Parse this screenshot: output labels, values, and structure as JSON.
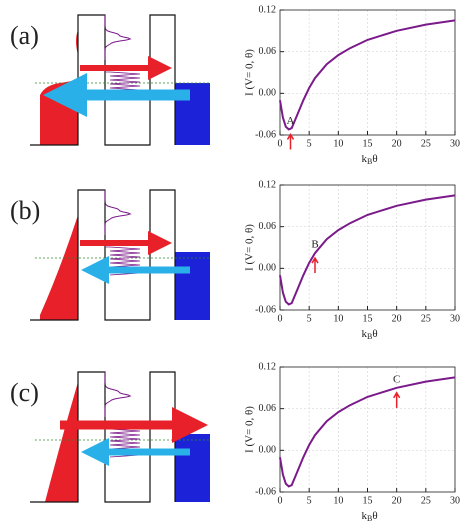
{
  "panel_labels": [
    "(a)",
    "(b)",
    "(c)"
  ],
  "chart_data": [
    {
      "type": "line",
      "y_label": "I (V= 0, θ)",
      "x_label": [
        "k",
        "B",
        "θ"
      ],
      "x": [
        0,
        0.5,
        1,
        1.5,
        2,
        3,
        4,
        5,
        6,
        8,
        10,
        12,
        15,
        20,
        25,
        30
      ],
      "series": [
        {
          "color": "#7b1a8a",
          "values": [
            -0.01,
            -0.035,
            -0.048,
            -0.052,
            -0.05,
            -0.03,
            -0.01,
            0.008,
            0.022,
            0.042,
            0.055,
            0.065,
            0.077,
            0.09,
            0.099,
            0.105
          ]
        }
      ],
      "xlim": [
        0,
        30
      ],
      "ylim": [
        -0.06,
        0.12
      ],
      "xticks": [
        0,
        5,
        10,
        15,
        20,
        25,
        30
      ],
      "yticks": [
        {
          "value": -0.06,
          "label": "-0.06"
        },
        {
          "value": 0,
          "label": "0.00"
        },
        {
          "value": 0.06,
          "label": "0.06"
        },
        {
          "value": 0.12,
          "label": "0.12"
        }
      ],
      "grid": true,
      "annotations": [
        {
          "text": "A",
          "x": 1.8,
          "y": -0.052
        }
      ]
    },
    {
      "type": "line",
      "y_label": "I (V= 0, θ)",
      "x_label": [
        "k",
        "B",
        "θ"
      ],
      "x": [
        0,
        0.5,
        1,
        1.5,
        2,
        3,
        4,
        5,
        6,
        8,
        10,
        12,
        15,
        20,
        25,
        30
      ],
      "series": [
        {
          "color": "#7b1a8a",
          "values": [
            -0.01,
            -0.035,
            -0.048,
            -0.052,
            -0.05,
            -0.03,
            -0.01,
            0.008,
            0.022,
            0.042,
            0.055,
            0.065,
            0.077,
            0.09,
            0.099,
            0.105
          ]
        }
      ],
      "xlim": [
        0,
        30
      ],
      "ylim": [
        -0.06,
        0.12
      ],
      "xticks": [
        0,
        5,
        10,
        15,
        20,
        25,
        30
      ],
      "yticks": [
        {
          "value": -0.06,
          "label": "-0.06"
        },
        {
          "value": 0,
          "label": "0.00"
        },
        {
          "value": 0.06,
          "label": "0.06"
        },
        {
          "value": 0.12,
          "label": "0.12"
        }
      ],
      "grid": true,
      "annotations": [
        {
          "text": "B",
          "x": 6,
          "y": 0.022
        }
      ]
    },
    {
      "type": "line",
      "y_label": "I (V= 0, θ)",
      "x_label": [
        "k",
        "B",
        "θ"
      ],
      "x": [
        0,
        0.5,
        1,
        1.5,
        2,
        3,
        4,
        5,
        6,
        8,
        10,
        12,
        15,
        20,
        25,
        30
      ],
      "series": [
        {
          "color": "#7b1a8a",
          "values": [
            -0.01,
            -0.035,
            -0.048,
            -0.052,
            -0.05,
            -0.03,
            -0.01,
            0.008,
            0.022,
            0.042,
            0.055,
            0.065,
            0.077,
            0.09,
            0.099,
            0.105
          ]
        }
      ],
      "xlim": [
        0,
        30
      ],
      "ylim": [
        -0.06,
        0.12
      ],
      "xticks": [
        0,
        5,
        10,
        15,
        20,
        25,
        30
      ],
      "yticks": [
        {
          "value": -0.06,
          "label": "-0.06"
        },
        {
          "value": 0,
          "label": "0.00"
        },
        {
          "value": 0.06,
          "label": "0.06"
        },
        {
          "value": 0.12,
          "label": "0.12"
        }
      ],
      "grid": true,
      "annotations": [
        {
          "text": "C",
          "x": 20,
          "y": 0.09
        }
      ]
    }
  ]
}
